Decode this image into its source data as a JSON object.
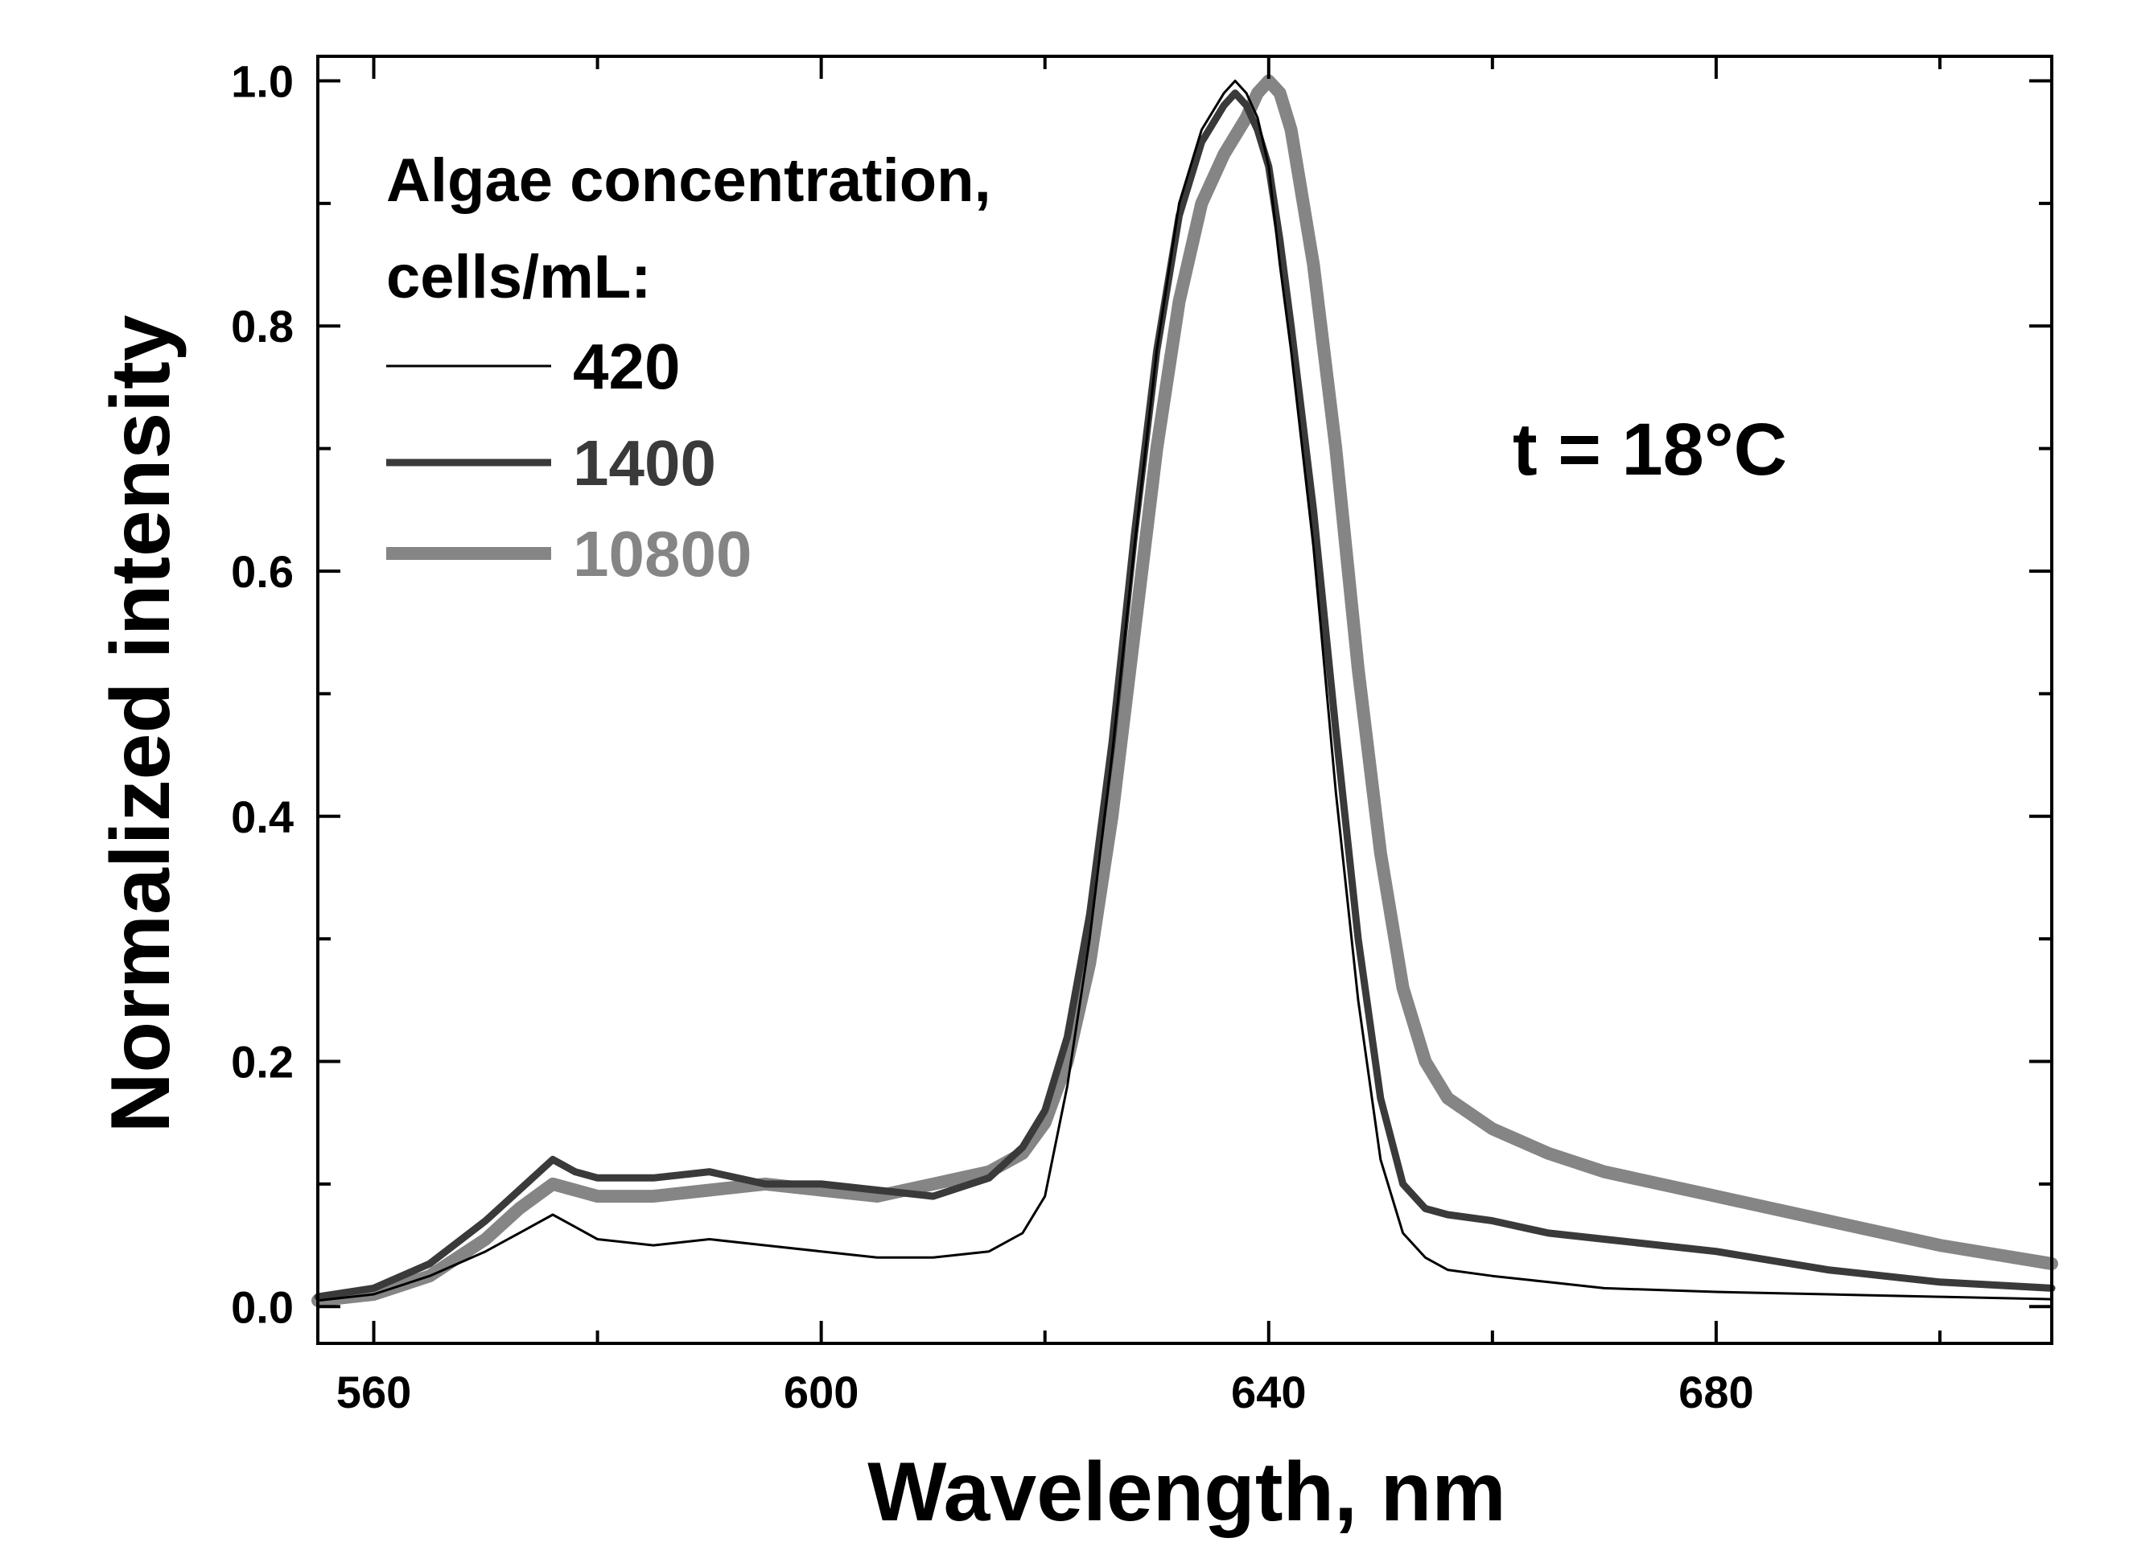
{
  "chart_data": {
    "type": "line",
    "xlabel": "Wavelength, nm",
    "ylabel": "Normalized intensity",
    "xlim": [
      555,
      710
    ],
    "ylim": [
      -0.03,
      1.02
    ],
    "x_ticks": [
      560,
      600,
      640,
      680
    ],
    "x_tick_labels": [
      "560",
      "600",
      "640",
      "680"
    ],
    "y_ticks": [
      0.0,
      0.2,
      0.4,
      0.6,
      0.8,
      1.0
    ],
    "y_tick_labels": [
      "0.0",
      "0.2",
      "0.4",
      "0.6",
      "0.8",
      "1.0"
    ],
    "legend": {
      "title_line1": "Algae concentration,",
      "title_line2": "cells/mL:",
      "placement": "top-left"
    },
    "annotation": "t = 18°C",
    "series": [
      {
        "name": "420",
        "color": "#000000",
        "width": "thin",
        "x": [
          555,
          560,
          565,
          570,
          573,
          576,
          578,
          580,
          585,
          590,
          595,
          600,
          605,
          610,
          615,
          618,
          620,
          622,
          624,
          626,
          628,
          630,
          632,
          634,
          636,
          637,
          638,
          639,
          640,
          641,
          642,
          644,
          646,
          648,
          650,
          652,
          654,
          656,
          660,
          665,
          670,
          680,
          690,
          700,
          710
        ],
        "y": [
          0.005,
          0.01,
          0.025,
          0.045,
          0.06,
          0.075,
          0.065,
          0.055,
          0.05,
          0.055,
          0.05,
          0.045,
          0.04,
          0.04,
          0.045,
          0.06,
          0.09,
          0.18,
          0.3,
          0.45,
          0.62,
          0.78,
          0.9,
          0.96,
          0.99,
          1.0,
          0.99,
          0.97,
          0.93,
          0.85,
          0.78,
          0.62,
          0.42,
          0.25,
          0.12,
          0.06,
          0.04,
          0.03,
          0.025,
          0.02,
          0.015,
          0.012,
          0.01,
          0.008,
          0.006
        ]
      },
      {
        "name": "1400",
        "color": "#3a3a3a",
        "width": "medium",
        "x": [
          555,
          560,
          565,
          570,
          573,
          576,
          578,
          580,
          585,
          590,
          595,
          600,
          605,
          610,
          615,
          618,
          620,
          622,
          624,
          626,
          628,
          630,
          632,
          634,
          636,
          637,
          638,
          639,
          640,
          641,
          642,
          644,
          646,
          648,
          650,
          652,
          654,
          656,
          660,
          665,
          670,
          680,
          690,
          700,
          710
        ],
        "y": [
          0.008,
          0.015,
          0.035,
          0.07,
          0.095,
          0.12,
          0.11,
          0.105,
          0.105,
          0.11,
          0.1,
          0.1,
          0.095,
          0.09,
          0.105,
          0.13,
          0.16,
          0.22,
          0.32,
          0.46,
          0.63,
          0.78,
          0.89,
          0.95,
          0.98,
          0.99,
          0.98,
          0.96,
          0.93,
          0.87,
          0.8,
          0.65,
          0.47,
          0.3,
          0.17,
          0.1,
          0.08,
          0.075,
          0.07,
          0.06,
          0.055,
          0.045,
          0.03,
          0.02,
          0.015
        ]
      },
      {
        "name": "10800",
        "color": "#858585",
        "width": "thick",
        "x": [
          555,
          560,
          565,
          570,
          573,
          576,
          578,
          580,
          585,
          590,
          595,
          600,
          605,
          610,
          615,
          618,
          620,
          622,
          624,
          626,
          628,
          630,
          632,
          634,
          636,
          638,
          639,
          640,
          641,
          642,
          644,
          646,
          648,
          650,
          652,
          654,
          656,
          660,
          665,
          670,
          680,
          690,
          700,
          710
        ],
        "y": [
          0.005,
          0.01,
          0.025,
          0.055,
          0.08,
          0.1,
          0.095,
          0.09,
          0.09,
          0.095,
          0.1,
          0.095,
          0.09,
          0.1,
          0.11,
          0.125,
          0.15,
          0.2,
          0.28,
          0.4,
          0.55,
          0.7,
          0.82,
          0.9,
          0.94,
          0.97,
          0.99,
          1.0,
          0.99,
          0.96,
          0.85,
          0.7,
          0.52,
          0.37,
          0.26,
          0.2,
          0.17,
          0.145,
          0.125,
          0.11,
          0.09,
          0.07,
          0.05,
          0.035
        ]
      }
    ]
  }
}
